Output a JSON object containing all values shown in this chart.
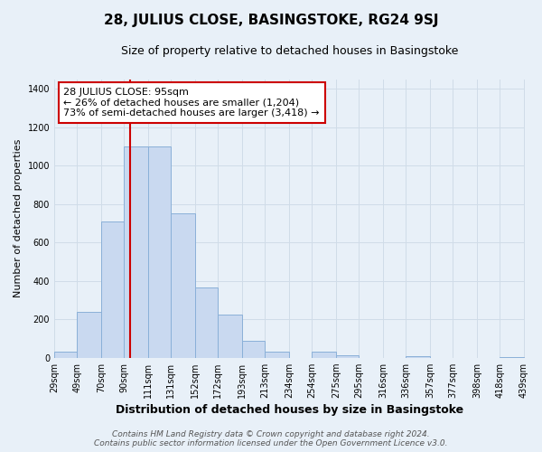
{
  "title": "28, JULIUS CLOSE, BASINGSTOKE, RG24 9SJ",
  "subtitle": "Size of property relative to detached houses in Basingstoke",
  "xlabel": "Distribution of detached houses by size in Basingstoke",
  "ylabel": "Number of detached properties",
  "bar_left_edges": [
    29,
    49,
    70,
    90,
    111,
    131,
    152,
    172,
    193,
    213,
    234,
    254,
    275,
    295,
    316,
    336,
    357,
    377,
    398,
    418
  ],
  "bar_widths": [
    20,
    21,
    20,
    21,
    20,
    21,
    20,
    21,
    20,
    21,
    20,
    21,
    20,
    21,
    20,
    21,
    20,
    21,
    20,
    21
  ],
  "bar_heights": [
    30,
    240,
    710,
    1100,
    1100,
    750,
    365,
    225,
    90,
    30,
    0,
    30,
    15,
    0,
    0,
    10,
    0,
    0,
    0,
    5
  ],
  "bar_color": "#c9d9f0",
  "bar_edgecolor": "#8ab0d8",
  "vline_x": 95,
  "vline_color": "#cc0000",
  "ylim": [
    0,
    1450
  ],
  "yticks": [
    0,
    200,
    400,
    600,
    800,
    1000,
    1200,
    1400
  ],
  "x_tick_labels": [
    "29sqm",
    "49sqm",
    "70sqm",
    "90sqm",
    "111sqm",
    "131sqm",
    "152sqm",
    "172sqm",
    "193sqm",
    "213sqm",
    "234sqm",
    "254sqm",
    "275sqm",
    "295sqm",
    "316sqm",
    "336sqm",
    "357sqm",
    "377sqm",
    "398sqm",
    "418sqm",
    "439sqm"
  ],
  "annotation_title": "28 JULIUS CLOSE: 95sqm",
  "annotation_line1": "← 26% of detached houses are smaller (1,204)",
  "annotation_line2": "73% of semi-detached houses are larger (3,418) →",
  "annotation_box_color": "#ffffff",
  "annotation_box_edgecolor": "#cc0000",
  "grid_color": "#d0dce8",
  "background_color": "#e8f0f8",
  "footer_line1": "Contains HM Land Registry data © Crown copyright and database right 2024.",
  "footer_line2": "Contains public sector information licensed under the Open Government Licence v3.0.",
  "title_fontsize": 11,
  "subtitle_fontsize": 9,
  "xlabel_fontsize": 9,
  "ylabel_fontsize": 8,
  "tick_fontsize": 7,
  "annotation_fontsize": 8,
  "footer_fontsize": 6.5
}
